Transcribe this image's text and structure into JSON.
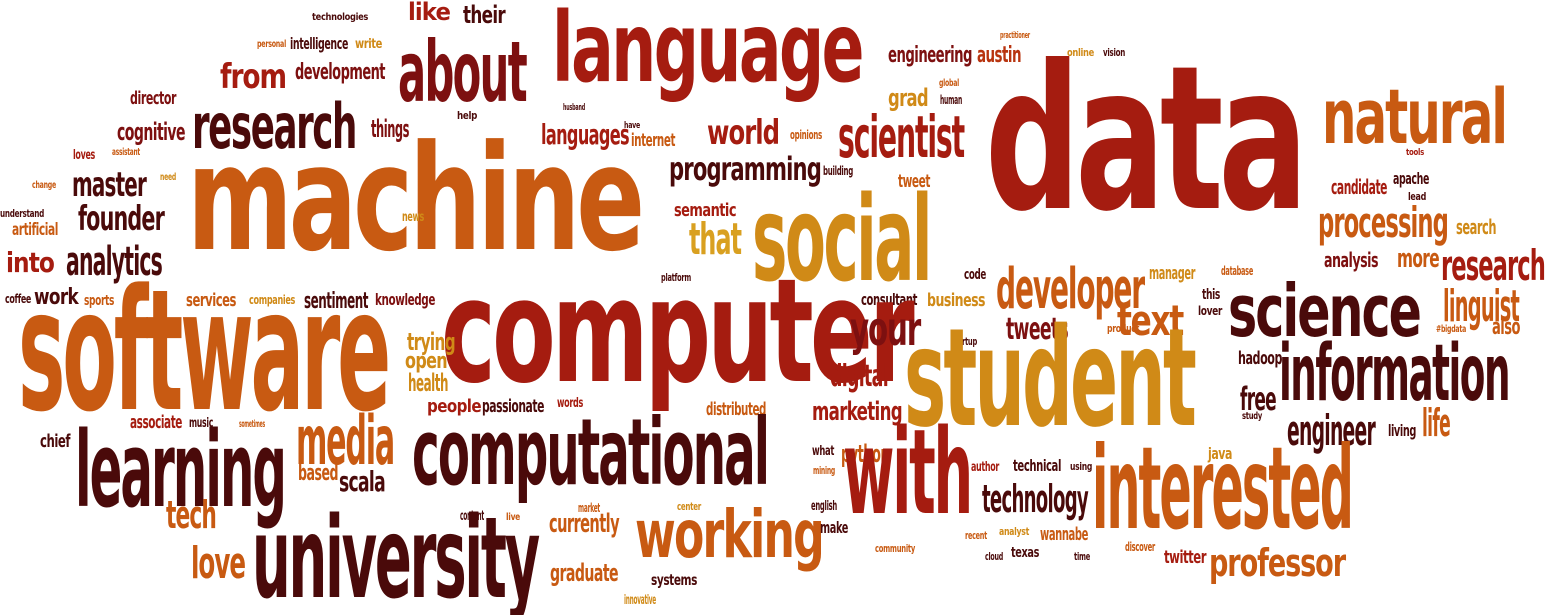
{
  "palette": {
    "dark_maroon": "#4a0a0a",
    "maroon": "#7d1010",
    "crimson": "#a51c10",
    "rust": "#b8340f",
    "orange": "#c85a12",
    "amber": "#d08a17",
    "gold": "#d9a020"
  },
  "words": [
    {
      "id": "technologies",
      "text": "technologies",
      "color": "#4a0a0a"
    },
    {
      "id": "like",
      "text": "like",
      "color": "#a51c10"
    },
    {
      "id": "their",
      "text": "their",
      "color": "#4a0a0a"
    },
    {
      "id": "language",
      "text": "language",
      "color": "#a51c10"
    },
    {
      "id": "personal",
      "text": "personal",
      "color": "#c85a12"
    },
    {
      "id": "intelligence",
      "text": "intelligence",
      "color": "#4a0a0a"
    },
    {
      "id": "write",
      "text": "write",
      "color": "#d08a17"
    },
    {
      "id": "practitioner",
      "text": "practitioner",
      "color": "#c85a12"
    },
    {
      "id": "online",
      "text": "online",
      "color": "#d08a17"
    },
    {
      "id": "vision",
      "text": "vision",
      "color": "#4a0a0a"
    },
    {
      "id": "from",
      "text": "from",
      "color": "#a51c10"
    },
    {
      "id": "development",
      "text": "development",
      "color": "#7d1010"
    },
    {
      "id": "about",
      "text": "about",
      "color": "#7d1010"
    },
    {
      "id": "engineering",
      "text": "engineering",
      "color": "#7d1010"
    },
    {
      "id": "austin",
      "text": "austin",
      "color": "#b8340f"
    },
    {
      "id": "global",
      "text": "global",
      "color": "#c85a12"
    },
    {
      "id": "human",
      "text": "human",
      "color": "#4a0a0a"
    },
    {
      "id": "data",
      "text": "data",
      "color": "#a51c10"
    },
    {
      "id": "natural",
      "text": "natural",
      "color": "#c85a12"
    },
    {
      "id": "director",
      "text": "director",
      "color": "#7d1010"
    },
    {
      "id": "research",
      "text": "research",
      "color": "#4a0a0a"
    },
    {
      "id": "husband",
      "text": "husband",
      "color": "#4a0a0a"
    },
    {
      "id": "help",
      "text": "help",
      "color": "#4a0a0a"
    },
    {
      "id": "grad",
      "text": "grad",
      "color": "#d08a17"
    },
    {
      "id": "things",
      "text": "things",
      "color": "#7d1010"
    },
    {
      "id": "have",
      "text": "have",
      "color": "#4a0a0a"
    },
    {
      "id": "cognitive",
      "text": "cognitive",
      "color": "#7d1010"
    },
    {
      "id": "languages",
      "text": "languages",
      "color": "#a51c10"
    },
    {
      "id": "internet",
      "text": "internet",
      "color": "#c85a12"
    },
    {
      "id": "world",
      "text": "world",
      "color": "#a51c10"
    },
    {
      "id": "opinions",
      "text": "opinions",
      "color": "#c85a12"
    },
    {
      "id": "scientist",
      "text": "scientist",
      "color": "#a51c10"
    },
    {
      "id": "loves",
      "text": "loves",
      "color": "#a51c10"
    },
    {
      "id": "assistant",
      "text": "assistant",
      "color": "#c85a12"
    },
    {
      "id": "tools",
      "text": "tools",
      "color": "#a51c10"
    },
    {
      "id": "machine",
      "text": "machine",
      "color": "#c85a12"
    },
    {
      "id": "master",
      "text": "master",
      "color": "#4a0a0a"
    },
    {
      "id": "need",
      "text": "need",
      "color": "#d08a17"
    },
    {
      "id": "programming",
      "text": "programming",
      "color": "#4a0a0a"
    },
    {
      "id": "building",
      "text": "building",
      "color": "#4a0a0a"
    },
    {
      "id": "change",
      "text": "change",
      "color": "#c85a12"
    },
    {
      "id": "tweet",
      "text": "tweet",
      "color": "#c85a12"
    },
    {
      "id": "candidate",
      "text": "candidate",
      "color": "#a51c10"
    },
    {
      "id": "apache",
      "text": "apache",
      "color": "#4a0a0a"
    },
    {
      "id": "lead",
      "text": "lead",
      "color": "#4a0a0a"
    },
    {
      "id": "understand",
      "text": "understand",
      "color": "#4a0a0a"
    },
    {
      "id": "founder",
      "text": "founder",
      "color": "#4a0a0a"
    },
    {
      "id": "social",
      "text": "social",
      "color": "#d08a17"
    },
    {
      "id": "semantic",
      "text": "semantic",
      "color": "#a51c10"
    },
    {
      "id": "processing",
      "text": "processing",
      "color": "#c85a12"
    },
    {
      "id": "search",
      "text": "search",
      "color": "#d08a17"
    },
    {
      "id": "artificial",
      "text": "artificial",
      "color": "#c85a12"
    },
    {
      "id": "news",
      "text": "news",
      "color": "#d08a17"
    },
    {
      "id": "that",
      "text": "that",
      "color": "#d9a020"
    },
    {
      "id": "into",
      "text": "into",
      "color": "#a51c10"
    },
    {
      "id": "analytics",
      "text": "analytics",
      "color": "#4a0a0a"
    },
    {
      "id": "platform",
      "text": "platform",
      "color": "#4a0a0a"
    },
    {
      "id": "code",
      "text": "code",
      "color": "#4a0a0a"
    },
    {
      "id": "manager",
      "text": "manager",
      "color": "#d08a17"
    },
    {
      "id": "database",
      "text": "database",
      "color": "#c85a12"
    },
    {
      "id": "analysis",
      "text": "analysis",
      "color": "#7d1010"
    },
    {
      "id": "more",
      "text": "more",
      "color": "#c85a12"
    },
    {
      "id": "researcher",
      "text": "research",
      "color": "#a51c10"
    },
    {
      "id": "coffee",
      "text": "coffee",
      "color": "#4a0a0a"
    },
    {
      "id": "work",
      "text": "work",
      "color": "#4a0a0a"
    },
    {
      "id": "sports",
      "text": "sports",
      "color": "#c85a12"
    },
    {
      "id": "services",
      "text": "services",
      "color": "#c85a12"
    },
    {
      "id": "companies",
      "text": "companies",
      "color": "#d08a17"
    },
    {
      "id": "sentiment",
      "text": "sentiment",
      "color": "#4a0a0a"
    },
    {
      "id": "knowledge",
      "text": "knowledge",
      "color": "#7d1010"
    },
    {
      "id": "consultant",
      "text": "consultant",
      "color": "#4a0a0a"
    },
    {
      "id": "business",
      "text": "business",
      "color": "#d08a17"
    },
    {
      "id": "developer",
      "text": "developer",
      "color": "#c85a12"
    },
    {
      "id": "this",
      "text": "this",
      "color": "#4a0a0a"
    },
    {
      "id": "lover",
      "text": "lover",
      "color": "#4a0a0a"
    },
    {
      "id": "linguist",
      "text": "linguist",
      "color": "#c85a12"
    },
    {
      "id": "software",
      "text": "software",
      "color": "#c85a12"
    },
    {
      "id": "computer",
      "text": "computer",
      "color": "#a51c10"
    },
    {
      "id": "your",
      "text": "your",
      "color": "#7d1010"
    },
    {
      "id": "tweets",
      "text": "tweets",
      "color": "#7d1010"
    },
    {
      "id": "text",
      "text": "text",
      "color": "#c85a12"
    },
    {
      "id": "science",
      "text": "science",
      "color": "#4a0a0a"
    },
    {
      "id": "product",
      "text": "product",
      "color": "#c85a12"
    },
    {
      "id": "bigdata",
      "text": "#bigdata",
      "color": "#c85a12"
    },
    {
      "id": "also",
      "text": "also",
      "color": "#c85a12"
    },
    {
      "id": "trying",
      "text": "trying",
      "color": "#d08a17"
    },
    {
      "id": "open",
      "text": "open",
      "color": "#d08a17"
    },
    {
      "id": "startup",
      "text": "startup",
      "color": "#4a0a0a"
    },
    {
      "id": "digital",
      "text": "digital",
      "color": "#a51c10"
    },
    {
      "id": "health",
      "text": "health",
      "color": "#d08a17"
    },
    {
      "id": "student",
      "text": "student",
      "color": "#d08a17"
    },
    {
      "id": "hadoop",
      "text": "hadoop",
      "color": "#4a0a0a"
    },
    {
      "id": "information",
      "text": "information",
      "color": "#4a0a0a"
    },
    {
      "id": "people",
      "text": "people",
      "color": "#a51c10"
    },
    {
      "id": "passionate",
      "text": "passionate",
      "color": "#4a0a0a"
    },
    {
      "id": "words",
      "text": "words",
      "color": "#a51c10"
    },
    {
      "id": "distributed",
      "text": "distributed",
      "color": "#c85a12"
    },
    {
      "id": "marketing",
      "text": "marketing",
      "color": "#a51c10"
    },
    {
      "id": "free",
      "text": "free",
      "color": "#4a0a0a"
    },
    {
      "id": "associate",
      "text": "associate",
      "color": "#a51c10"
    },
    {
      "id": "music",
      "text": "music",
      "color": "#4a0a0a"
    },
    {
      "id": "sometimes",
      "text": "sometimes",
      "color": "#c85a12"
    },
    {
      "id": "study",
      "text": "study",
      "color": "#4a0a0a"
    },
    {
      "id": "life",
      "text": "life",
      "color": "#c85a12"
    },
    {
      "id": "chief",
      "text": "chief",
      "color": "#4a0a0a"
    },
    {
      "id": "media",
      "text": "media",
      "color": "#c85a12"
    },
    {
      "id": "computational",
      "text": "computational",
      "color": "#4a0a0a"
    },
    {
      "id": "engineer",
      "text": "engineer",
      "color": "#4a0a0a"
    },
    {
      "id": "living",
      "text": "living",
      "color": "#4a0a0a"
    },
    {
      "id": "learning",
      "text": "learning",
      "color": "#4a0a0a"
    },
    {
      "id": "what",
      "text": "what",
      "color": "#4a0a0a"
    },
    {
      "id": "python",
      "text": "python",
      "color": "#c85a12"
    },
    {
      "id": "java",
      "text": "java",
      "color": "#d08a17"
    },
    {
      "id": "based",
      "text": "based",
      "color": "#c85a12"
    },
    {
      "id": "scala",
      "text": "scala",
      "color": "#4a0a0a"
    },
    {
      "id": "mining",
      "text": "mining",
      "color": "#c85a12"
    },
    {
      "id": "author",
      "text": "author",
      "color": "#a51c10"
    },
    {
      "id": "technical",
      "text": "technical",
      "color": "#4a0a0a"
    },
    {
      "id": "using",
      "text": "using",
      "color": "#4a0a0a"
    },
    {
      "id": "with",
      "text": "with",
      "color": "#a51c10"
    },
    {
      "id": "technology",
      "text": "technology",
      "color": "#4a0a0a"
    },
    {
      "id": "interested",
      "text": "interested",
      "color": "#c85a12"
    },
    {
      "id": "content",
      "text": "content",
      "color": "#4a0a0a"
    },
    {
      "id": "live",
      "text": "live",
      "color": "#c85a12"
    },
    {
      "id": "market",
      "text": "market",
      "color": "#c85a12"
    },
    {
      "id": "center",
      "text": "center",
      "color": "#d08a17"
    },
    {
      "id": "english",
      "text": "english",
      "color": "#4a0a0a"
    },
    {
      "id": "tech",
      "text": "tech",
      "color": "#c85a12"
    },
    {
      "id": "currently",
      "text": "currently",
      "color": "#c85a12"
    },
    {
      "id": "working",
      "text": "working",
      "color": "#c85a12"
    },
    {
      "id": "make",
      "text": "make",
      "color": "#4a0a0a"
    },
    {
      "id": "analyst",
      "text": "analyst",
      "color": "#d08a17"
    },
    {
      "id": "wannabe",
      "text": "wannabe",
      "color": "#c85a12"
    },
    {
      "id": "recent",
      "text": "recent",
      "color": "#c85a12"
    },
    {
      "id": "professor",
      "text": "professor",
      "color": "#c85a12"
    },
    {
      "id": "love",
      "text": "love",
      "color": "#c85a12"
    },
    {
      "id": "university",
      "text": "university",
      "color": "#4a0a0a"
    },
    {
      "id": "community",
      "text": "community",
      "color": "#c85a12"
    },
    {
      "id": "cloud",
      "text": "cloud",
      "color": "#4a0a0a"
    },
    {
      "id": "texas",
      "text": "texas",
      "color": "#4a0a0a"
    },
    {
      "id": "time",
      "text": "time",
      "color": "#4a0a0a"
    },
    {
      "id": "discover",
      "text": "discover",
      "color": "#c85a12"
    },
    {
      "id": "twitter",
      "text": "twitter",
      "color": "#a51c10"
    },
    {
      "id": "graduate",
      "text": "graduate",
      "color": "#c85a12"
    },
    {
      "id": "systems",
      "text": "systems",
      "color": "#4a0a0a"
    },
    {
      "id": "innovative",
      "text": "innovative",
      "color": "#d08a17"
    }
  ]
}
